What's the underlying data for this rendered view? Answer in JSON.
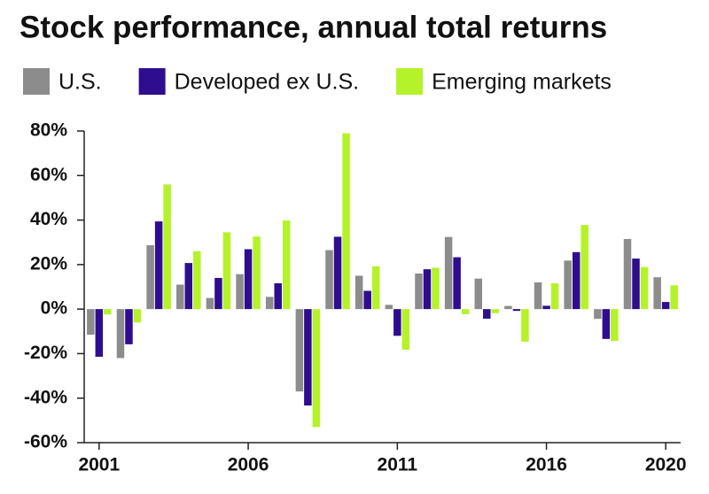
{
  "chart_data": {
    "type": "bar",
    "title": "Stock performance, annual total returns",
    "x": [
      2001,
      2002,
      2003,
      2004,
      2005,
      2006,
      2007,
      2008,
      2009,
      2010,
      2011,
      2012,
      2013,
      2014,
      2015,
      2016,
      2017,
      2018,
      2019,
      2020
    ],
    "xlim": [
      2000.5,
      2020.5
    ],
    "xticks": [
      2001,
      2006,
      2011,
      2016,
      2020
    ],
    "ylim": [
      -60,
      80
    ],
    "yticks": [
      {
        "value": -60,
        "label": "-60%"
      },
      {
        "value": -40,
        "label": "-40%"
      },
      {
        "value": -20,
        "label": "-20%"
      },
      {
        "value": 0,
        "label": "0%"
      },
      {
        "value": 20,
        "label": "20%"
      },
      {
        "value": 40,
        "label": "40%"
      },
      {
        "value": 60,
        "label": "60%"
      },
      {
        "value": 80,
        "label": "80%"
      }
    ],
    "series": [
      {
        "name": "U.S.",
        "color": "#8c8c8c",
        "values": [
          -11.5,
          -22,
          28.7,
          11,
          5,
          15.7,
          5.5,
          -37,
          26.5,
          15,
          1.9,
          16,
          32.4,
          13.7,
          1.4,
          12,
          21.8,
          -4.4,
          31.5,
          14.3
        ]
      },
      {
        "name": "Developed ex U.S.",
        "color": "#2e0e8f",
        "values": [
          -21.4,
          -15.8,
          39.4,
          20.7,
          14,
          26.9,
          11.6,
          -43.3,
          32.5,
          8.2,
          -12,
          17.9,
          23.3,
          -4.3,
          -0.8,
          1.5,
          25.6,
          -13.4,
          22.7,
          3.2
        ]
      },
      {
        "name": "Emerging markets",
        "color": "#b5f22a",
        "values": [
          -2.4,
          -6,
          56,
          26,
          34.5,
          32.6,
          39.8,
          -53,
          79,
          19.2,
          -18.2,
          18.6,
          -2.3,
          -1.8,
          -14.6,
          11.6,
          37.8,
          -14.3,
          18.9,
          10.7
        ]
      }
    ]
  }
}
